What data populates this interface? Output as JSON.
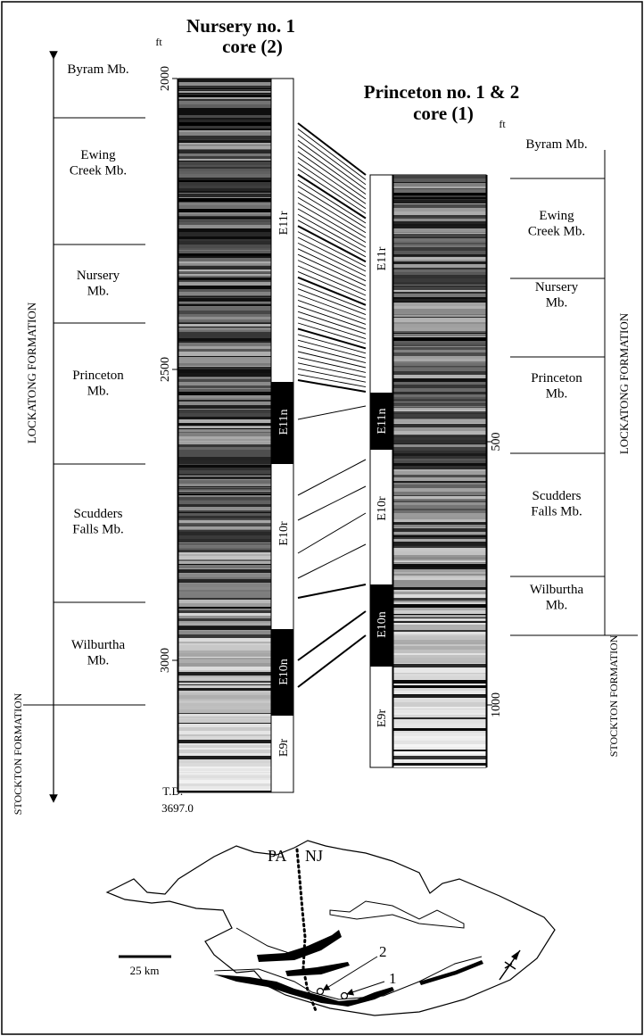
{
  "left_core": {
    "title_line1": "Nursery no. 1",
    "title_line2": "core (2)",
    "unit": "ft",
    "depth_ticks": [
      2000,
      2500,
      3000
    ],
    "td_line1": "T.D. =",
    "td_line2": "3697.0",
    "polarity_zones": [
      {
        "label": "E11r",
        "polarity": "reversed"
      },
      {
        "label": "E11n",
        "polarity": "normal"
      },
      {
        "label": "E10r",
        "polarity": "reversed"
      },
      {
        "label": "E10n",
        "polarity": "normal"
      },
      {
        "label": "E9r",
        "polarity": "reversed"
      }
    ],
    "members": [
      "Byram Mb.",
      "Ewing Creek Mb.",
      "Nursery Mb.",
      "Princeton Mb.",
      "Scudders Falls Mb.",
      "Wilburtha Mb."
    ],
    "formation_upper": "LOCKATONG FORMATION",
    "formation_lower": "STOCKTON FORMATION"
  },
  "right_core": {
    "title_line1": "Princeton no. 1 & 2",
    "title_line2": "core (1)",
    "unit": "ft",
    "depth_ticks": [
      500,
      1000
    ],
    "polarity_zones": [
      {
        "label": "E11r",
        "polarity": "reversed"
      },
      {
        "label": "E11n",
        "polarity": "normal"
      },
      {
        "label": "E10r",
        "polarity": "reversed"
      },
      {
        "label": "E10n",
        "polarity": "normal"
      },
      {
        "label": "E9r",
        "polarity": "reversed"
      }
    ],
    "members": [
      "Byram Mb.",
      "Ewing Creek Mb.",
      "Nursery Mb.",
      "Princeton Mb.",
      "Scudders Falls Mb.",
      "Wilburtha Mb."
    ],
    "formation_upper": "LOCKATONG FORMATION",
    "formation_lower": "STOCKTON FORMATION"
  },
  "map": {
    "state_left": "PA",
    "state_right": "NJ",
    "scale_label": "25 km",
    "site_1": "1",
    "site_2": "2"
  }
}
